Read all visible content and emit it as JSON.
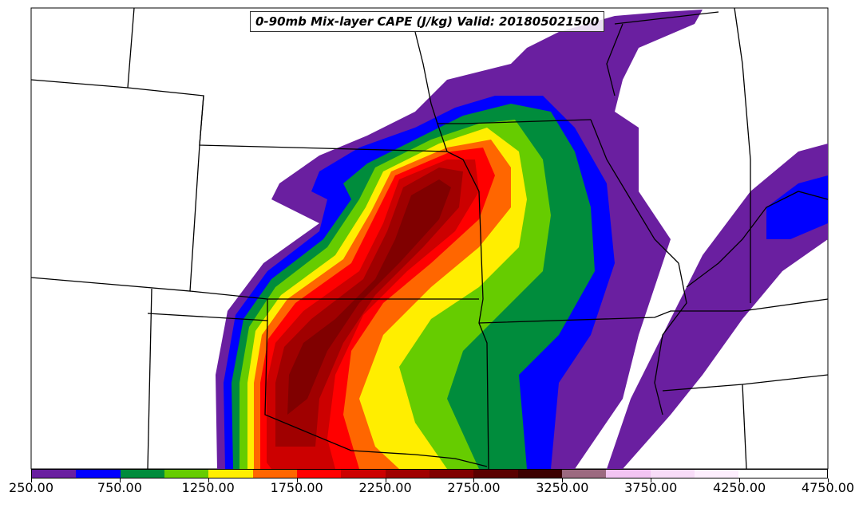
{
  "title": "0-90mb Mix-layer CAPE (J/kg) Valid: 201805021500",
  "colorbar": {
    "colors": [
      "#6a1fa0",
      "#0000ff",
      "#008c3c",
      "#66cc00",
      "#ffee00",
      "#ff6600",
      "#ff0000",
      "#cc0000",
      "#a00000",
      "#800000",
      "#5a0000",
      "#3c0000",
      "#9c6a80",
      "#f2c4f2",
      "#f8dcf8",
      "#fdeefd",
      "#ffffff",
      "#ffffff"
    ],
    "tick_labels": [
      "250.00",
      "750.00",
      "1250.00",
      "1750.00",
      "2250.00",
      "2750.00",
      "3250.00",
      "3750.00",
      "4250.00",
      "4750.00"
    ]
  },
  "map": {
    "field": "0-90mb Mix-layer CAPE",
    "units": "J/kg"
  }
}
